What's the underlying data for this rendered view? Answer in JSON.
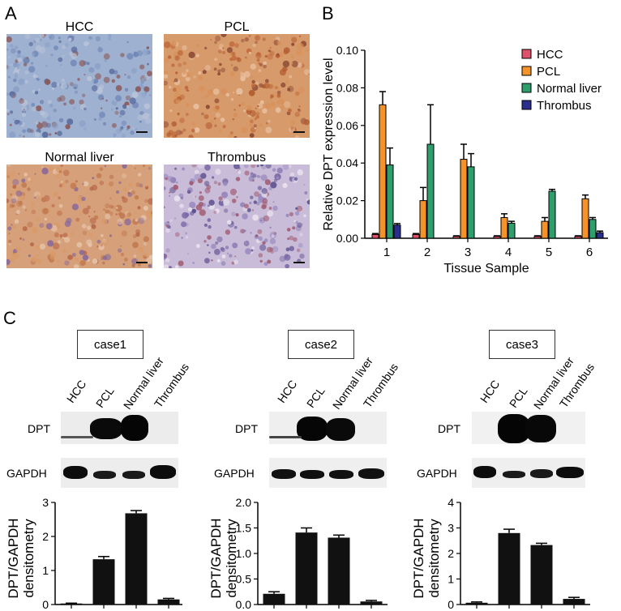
{
  "panels": {
    "a_letter": "A",
    "b_letter": "B",
    "c_letter": "C"
  },
  "micrographs": [
    {
      "title": "HCC",
      "stain": "blue"
    },
    {
      "title": "PCL",
      "stain": "brown"
    },
    {
      "title": "Normal liver",
      "stain": "brown"
    },
    {
      "title": "Thrombus",
      "stain": "purple"
    }
  ],
  "colors": {
    "HCC": "#e0506a",
    "PCL": "#f5932a",
    "Normal liver": "#2e9e6b",
    "Thrombus": "#2b2e8c",
    "bar_black": "#111111"
  },
  "chart_data": [
    {
      "type": "bar",
      "panel": "B",
      "categories": [
        "1",
        "2",
        "3",
        "4",
        "5",
        "6"
      ],
      "series": [
        {
          "name": "HCC",
          "values": [
            0.002,
            0.002,
            0.001,
            0.001,
            0.001,
            0.001
          ],
          "errors": [
            0.0005,
            0.0005,
            0.0003,
            0.0003,
            0.0003,
            0.0003
          ]
        },
        {
          "name": "PCL",
          "values": [
            0.071,
            0.02,
            0.042,
            0.011,
            0.009,
            0.021
          ],
          "errors": [
            0.007,
            0.007,
            0.008,
            0.002,
            0.002,
            0.002
          ]
        },
        {
          "name": "Normal liver",
          "values": [
            0.039,
            0.05,
            0.038,
            0.008,
            0.025,
            0.01
          ],
          "errors": [
            0.009,
            0.021,
            0.007,
            0.001,
            0.001,
            0.001
          ]
        },
        {
          "name": "Thrombus",
          "values": [
            0.007,
            0.0,
            0.0,
            0.0,
            0.0,
            0.003
          ],
          "errors": [
            0.0008,
            0,
            0,
            0,
            0,
            0.0008
          ]
        }
      ],
      "xlabel": "Tissue Sample",
      "ylabel": "Relative DPT expression level",
      "ylim": [
        0,
        0.1
      ],
      "yticks": [
        "0.00",
        "0.02",
        "0.04",
        "0.06",
        "0.08",
        "0.10"
      ],
      "legend": "top-right"
    },
    {
      "type": "bar",
      "panel": "C-case1",
      "categories": [
        "HCC",
        "PCL",
        "Normal liver",
        "Thrombus"
      ],
      "values": [
        0.03,
        1.33,
        2.68,
        0.15
      ],
      "errors": [
        0.01,
        0.08,
        0.08,
        0.03
      ],
      "ylabel": "DPT/GAPDH densitometry",
      "ylim": [
        0,
        3
      ],
      "yticks": [
        "0",
        "1",
        "2",
        "3"
      ]
    },
    {
      "type": "bar",
      "panel": "C-case2",
      "categories": [
        "HCC",
        "PCL",
        "Normal liver",
        "Thrombus"
      ],
      "values": [
        0.21,
        1.41,
        1.31,
        0.06
      ],
      "errors": [
        0.04,
        0.09,
        0.05,
        0.02
      ],
      "ylabel": "DPT/GAPDH densitometry",
      "ylim": [
        0,
        2
      ],
      "yticks": [
        "0.0",
        "0.5",
        "1.0",
        "1.5",
        "2.0"
      ]
    },
    {
      "type": "bar",
      "panel": "C-case3",
      "categories": [
        "HCC",
        "PCL",
        "Normal liver",
        "Thrombus"
      ],
      "values": [
        0.07,
        2.8,
        2.33,
        0.22
      ],
      "errors": [
        0.03,
        0.15,
        0.07,
        0.06
      ],
      "ylabel": "DPT/GAPDH densitometry",
      "ylim": [
        0,
        4
      ],
      "yticks": [
        "0",
        "1",
        "2",
        "3",
        "4"
      ]
    }
  ],
  "western": [
    {
      "case_label": "case1",
      "lanes": [
        "HCC",
        "PCL",
        "Normal liver",
        "Thrombus"
      ],
      "row1": "DPT",
      "row2": "GAPDH"
    },
    {
      "case_label": "case2",
      "lanes": [
        "HCC",
        "PCL",
        "Normal liver",
        "Thrombus"
      ],
      "row1": "DPT",
      "row2": "GAPDH"
    },
    {
      "case_label": "case3",
      "lanes": [
        "HCC",
        "PCL",
        "Normal liver",
        "Thrombus"
      ],
      "row1": "DPT",
      "row2": "GAPDH"
    }
  ]
}
